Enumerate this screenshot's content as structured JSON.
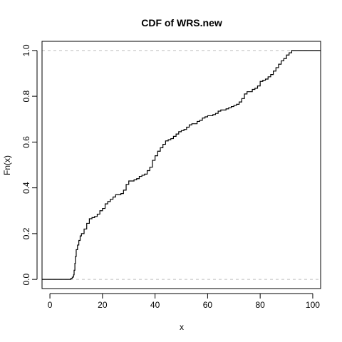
{
  "chart_data": {
    "type": "line",
    "step": true,
    "title": "CDF of WRS.new",
    "xlabel": "x",
    "ylabel": "Fn(x)",
    "xlim": [
      -3,
      103
    ],
    "ylim": [
      -0.04,
      1.04
    ],
    "xticks": [
      0,
      20,
      40,
      60,
      80,
      100
    ],
    "xtick_labels": [
      "0",
      "20",
      "40",
      "60",
      "80",
      "100"
    ],
    "yticks": [
      0.0,
      0.2,
      0.4,
      0.6,
      0.8,
      1.0
    ],
    "ytick_labels": [
      "0.0",
      "0.2",
      "0.4",
      "0.6",
      "0.8",
      "1.0"
    ],
    "reference_lines": [
      0,
      1
    ],
    "grid": false,
    "series": [
      {
        "x": [
          -3,
          8,
          8.5,
          9,
          9.2,
          9.5,
          9.7,
          10,
          10.5,
          11,
          11.5,
          12,
          13,
          14,
          15,
          16,
          17,
          18,
          19,
          20,
          21,
          22,
          23,
          24,
          25,
          26,
          27,
          28,
          29,
          30,
          31,
          32,
          33,
          34,
          35,
          36,
          37,
          38,
          39,
          40,
          41,
          42,
          43,
          44,
          45,
          46,
          47,
          48,
          49,
          50,
          51,
          52,
          53,
          54,
          55,
          56,
          57,
          58,
          59,
          60,
          61,
          62,
          63,
          64,
          65,
          66,
          67,
          68,
          69,
          70,
          71,
          72,
          73,
          74,
          75,
          76,
          77,
          78,
          79,
          80,
          81,
          82,
          83,
          84,
          85,
          86,
          87,
          88,
          89,
          90,
          91,
          92,
          103
        ],
        "y": [
          0.0,
          0.005,
          0.01,
          0.02,
          0.04,
          0.07,
          0.1,
          0.13,
          0.15,
          0.17,
          0.19,
          0.2,
          0.22,
          0.245,
          0.265,
          0.27,
          0.275,
          0.285,
          0.3,
          0.31,
          0.33,
          0.34,
          0.35,
          0.36,
          0.37,
          0.37,
          0.375,
          0.39,
          0.415,
          0.43,
          0.43,
          0.435,
          0.44,
          0.45,
          0.455,
          0.46,
          0.475,
          0.49,
          0.52,
          0.54,
          0.56,
          0.575,
          0.59,
          0.605,
          0.61,
          0.615,
          0.625,
          0.635,
          0.645,
          0.65,
          0.655,
          0.665,
          0.675,
          0.68,
          0.68,
          0.69,
          0.695,
          0.705,
          0.71,
          0.715,
          0.715,
          0.72,
          0.725,
          0.735,
          0.74,
          0.74,
          0.745,
          0.75,
          0.755,
          0.76,
          0.765,
          0.775,
          0.79,
          0.81,
          0.82,
          0.82,
          0.83,
          0.835,
          0.845,
          0.865,
          0.87,
          0.875,
          0.885,
          0.895,
          0.91,
          0.925,
          0.94,
          0.955,
          0.965,
          0.98,
          0.99,
          1.0,
          1.0
        ]
      }
    ]
  }
}
